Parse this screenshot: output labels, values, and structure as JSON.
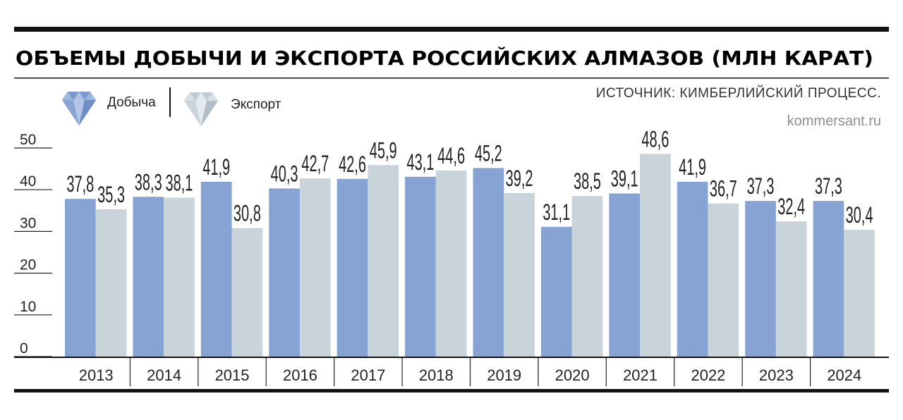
{
  "colors": {
    "production": "#86a3d4",
    "export": "#c9d3da",
    "rule": "#111111"
  },
  "chart_data": {
    "type": "bar",
    "title": "ОБЪЕМЫ ДОБЫЧИ И ЭКСПОРТА РОССИЙСКИХ АЛМАЗОВ (МЛН КАРАТ)",
    "source": "ИСТОЧНИК: КИМБЕРЛИЙСКИЙ ПРОЦЕСС.",
    "site": "kommersant.ru",
    "categories": [
      "2013",
      "2014",
      "2015",
      "2016",
      "2017",
      "2018",
      "2019",
      "2020",
      "2021",
      "2022",
      "2023",
      "2024"
    ],
    "series": [
      {
        "name": "Добыча",
        "icon": "diamond-icon",
        "values": [
          37.8,
          38.3,
          41.9,
          40.3,
          42.6,
          43.1,
          45.2,
          31.1,
          39.1,
          41.9,
          37.3,
          37.3
        ]
      },
      {
        "name": "Экспорт",
        "icon": "diamond-icon",
        "values": [
          35.3,
          38.1,
          30.8,
          42.7,
          45.9,
          44.6,
          39.2,
          38.5,
          48.6,
          36.7,
          32.4,
          30.4
        ]
      }
    ],
    "yticks": [
      "0",
      "10",
      "20",
      "30",
      "40",
      "50"
    ],
    "ylim": [
      0,
      50
    ],
    "decimal_separator": ",",
    "legend_position": "top-left",
    "grid": false
  }
}
